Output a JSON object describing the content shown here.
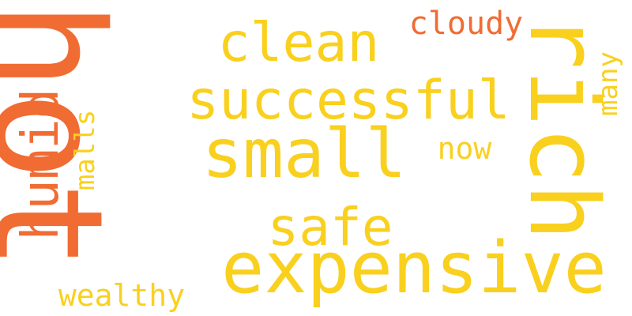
{
  "words": {
    "hot": "hot",
    "clean": "clean",
    "successful": "successful",
    "small": "small",
    "safe": "safe",
    "expensive": "expensive",
    "cloudy": "cloudy",
    "now": "now",
    "wealthy": "wealthy",
    "rich": "rich",
    "humid": "humid",
    "malls": "malls",
    "many": "many"
  },
  "colors": {
    "yellow": "#f9d01e",
    "orange": "#f06c33",
    "background": "#ffffff"
  }
}
